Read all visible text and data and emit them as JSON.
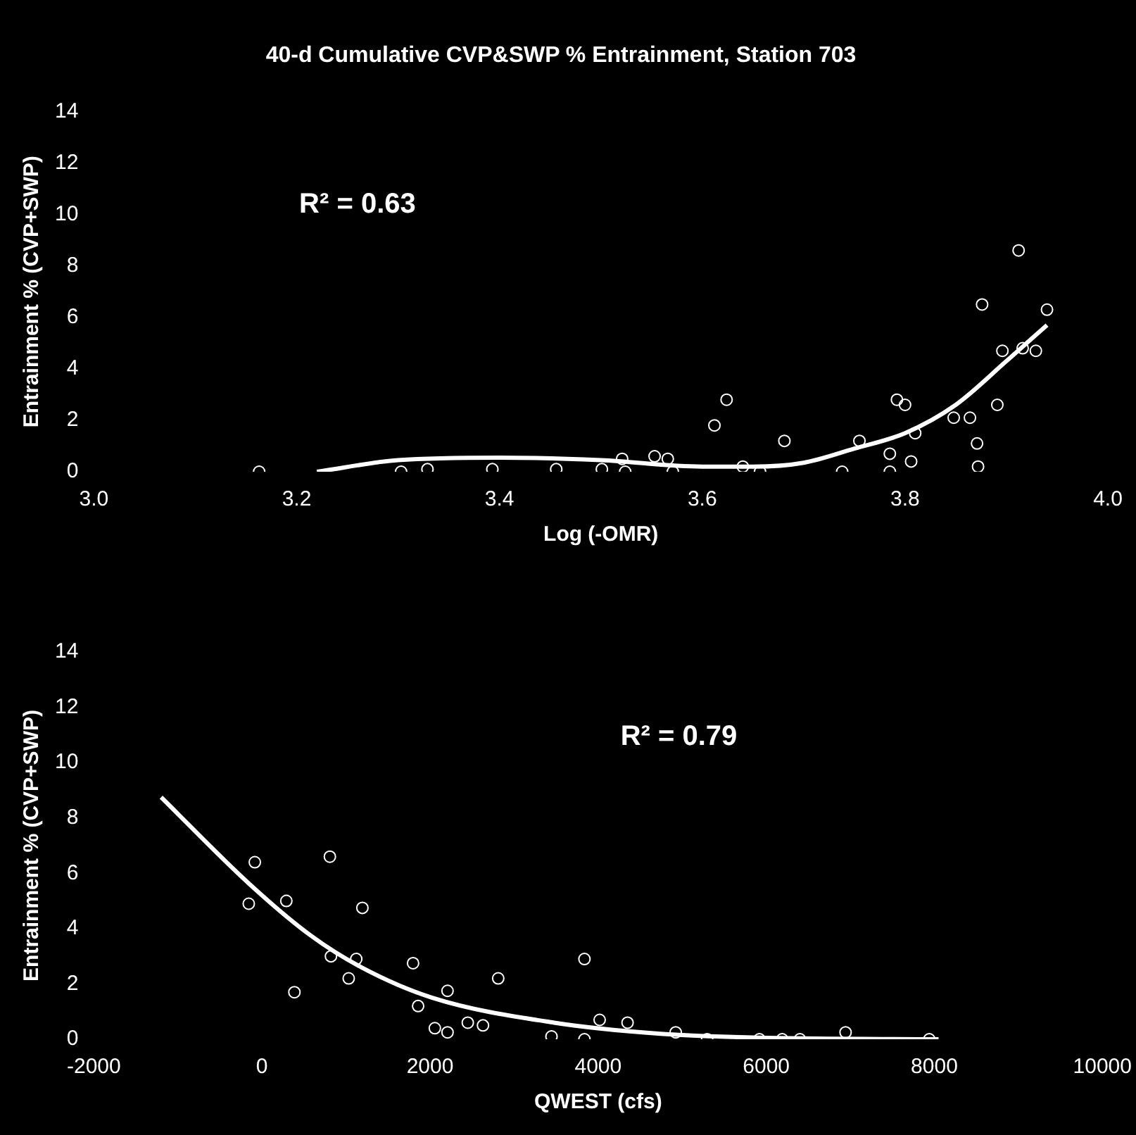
{
  "chart_data": [
    {
      "type": "scatter",
      "title": "40-d Cumulative CVP&SWP % Entrainment, Station 703",
      "xlabel": "Log (-OMR)",
      "ylabel": "Entrainment % (CVP+SWP)",
      "annotations": [
        "R² = 0.63"
      ],
      "legend": false,
      "grid": false,
      "marker": "circle",
      "xlim": [
        3.0,
        4.0
      ],
      "xticks": [
        {
          "value": 3.0,
          "label": "3.0"
        },
        3.2,
        3.4,
        3.6,
        3.8,
        {
          "value": 4.0,
          "label": "4.0"
        }
      ],
      "ylim": [
        0,
        14
      ],
      "yticks": [
        0,
        2,
        4,
        6,
        8,
        10,
        12,
        14
      ],
      "series": [
        {
          "color": "#ffffff",
          "x": [
            3.163,
            3.303,
            3.329,
            3.393,
            3.456,
            3.501,
            3.521,
            3.524,
            3.553,
            3.566,
            3.571,
            3.612,
            3.624,
            3.64,
            3.657,
            3.681,
            3.738,
            3.755,
            3.785,
            3.785,
            3.792,
            3.8,
            3.806,
            3.81,
            3.848,
            3.864,
            3.871,
            3.872,
            3.876,
            3.891,
            3.896,
            3.912,
            3.916,
            3.929,
            3.94
          ],
          "values": [
            0,
            0,
            0.1,
            0.1,
            0.1,
            0.1,
            0.5,
            0,
            0.6,
            0.5,
            0,
            1.8,
            2.8,
            0.2,
            0,
            1.2,
            0,
            1.2,
            0.7,
            0,
            2.8,
            2.6,
            0.4,
            1.5,
            2.1,
            2.1,
            1.1,
            0.2,
            6.5,
            2.6,
            4.7,
            8.6,
            4.8,
            4.7,
            6.3
          ]
        },
        {
          "type": "line",
          "color": "#ffffff",
          "marker": "none",
          "x": [
            3.22,
            3.3,
            3.4,
            3.5,
            3.6,
            3.65,
            3.7,
            3.75,
            3.8,
            3.85,
            3.9,
            3.94
          ],
          "values": [
            0,
            0.45,
            0.55,
            0.45,
            0.2,
            0.2,
            0.35,
            0.9,
            1.5,
            2.6,
            4.3,
            5.7
          ]
        }
      ]
    },
    {
      "type": "scatter",
      "xlabel": "QWEST (cfs)",
      "ylabel": "Entrainment % (CVP+SWP)",
      "annotations": [
        "R² = 0.79"
      ],
      "legend": false,
      "grid": false,
      "marker": "circle",
      "xlim": [
        -2000,
        10000
      ],
      "xticks": [
        -2000,
        0,
        2000,
        4000,
        6000,
        8000,
        10000
      ],
      "ylim": [
        0,
        14
      ],
      "yticks": [
        0,
        2,
        4,
        6,
        8,
        10,
        12,
        14
      ],
      "series": [
        {
          "color": "#ffffff",
          "x": [
            -157,
            -85,
            290,
            386,
            808,
            821,
            1032,
            1122,
            1195,
            1798,
            1858,
            2057,
            2208,
            2208,
            2449,
            2630,
            2811,
            3445,
            3837,
            3837,
            4018,
            4350,
            4923,
            5297,
            5919,
            6190,
            6401,
            6944,
            7940
          ],
          "values": [
            4.9,
            6.4,
            5.0,
            1.7,
            6.6,
            3.0,
            2.2,
            2.9,
            4.75,
            2.75,
            1.2,
            0.4,
            1.75,
            0.25,
            0.6,
            0.5,
            2.2,
            0.1,
            2.9,
            0,
            0.7,
            0.6,
            0.25,
            0,
            0,
            0,
            0,
            0.25,
            0
          ]
        },
        {
          "type": "line",
          "color": "#ffffff",
          "marker": "none",
          "x": [
            -1200,
            -145,
            580,
            1183,
            2027,
            3475,
            4742,
            6000,
            8050
          ],
          "values": [
            8.75,
            5.6,
            3.75,
            2.6,
            1.5,
            0.6,
            0.2,
            0.05,
            0
          ]
        }
      ]
    }
  ]
}
